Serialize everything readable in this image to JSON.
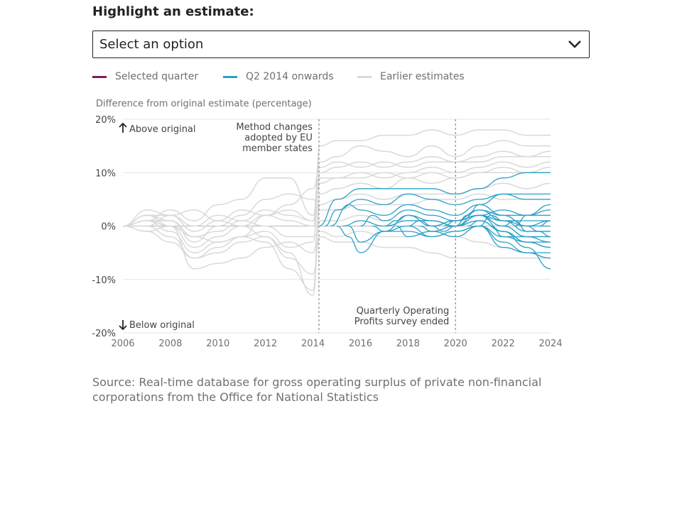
{
  "heading": "Highlight an estimate:",
  "select": {
    "value": "Select an option",
    "icon": "chevron-down-icon"
  },
  "legend": [
    {
      "label": "Selected quarter",
      "color": "#7b1e5e"
    },
    {
      "label": "Q2 2014 onwards",
      "color": "#2aa0c7"
    },
    {
      "label": "Earlier estimates",
      "color": "#d9d9d9"
    }
  ],
  "chart_data": {
    "type": "line",
    "title": "",
    "ylabel": "Difference from original estimate (percentage)",
    "xlim": [
      2006,
      2024
    ],
    "ylim": [
      -20,
      20
    ],
    "x_ticks": [
      "2006",
      "2008",
      "2010",
      "2012",
      "2014",
      "2016",
      "2018",
      "2020",
      "2022",
      "2024"
    ],
    "y_ticks": [
      "20%",
      "10%",
      "0%",
      "-10%",
      "-20%"
    ],
    "y_tick_values": [
      20,
      10,
      0,
      -10,
      -20
    ],
    "grid": true,
    "annotations": {
      "above": "Above original",
      "below": "Below original",
      "method_change": {
        "x": 2014.25,
        "lines": [
          "Method changes",
          "adopted by EU",
          "member states"
        ]
      },
      "survey_ended": {
        "x": 2020,
        "lines": [
          "Quarterly Operating",
          "Profits survey ended"
        ]
      }
    },
    "series_groups": {
      "earlier_estimates": {
        "color": "#d9d9d9",
        "series": [
          {
            "x": [
              2006,
              2007,
              2008,
              2009,
              2010,
              2011,
              2012,
              2013,
              2014,
              2014.3,
              2015,
              2016,
              2017,
              2018,
              2019,
              2020,
              2021,
              2022,
              2023,
              2024
            ],
            "y": [
              0,
              2,
              1,
              -2,
              -1,
              1,
              3,
              2,
              1,
              15,
              16,
              16,
              17,
              17,
              18,
              17,
              18,
              18,
              17,
              17
            ]
          },
          {
            "x": [
              2006,
              2007,
              2008,
              2009,
              2010,
              2011,
              2012,
              2013,
              2014,
              2014.3,
              2015,
              2016,
              2017,
              2018,
              2019,
              2020,
              2021,
              2022,
              2023,
              2024
            ],
            "y": [
              0,
              1,
              3,
              1,
              4,
              5,
              9,
              9,
              2,
              12,
              13,
              15,
              14,
              13,
              15,
              13,
              15,
              16,
              15,
              15
            ]
          },
          {
            "x": [
              2006,
              2007,
              2008,
              2009,
              2010,
              2011,
              2012,
              2013,
              2014,
              2014.3,
              2015,
              2016,
              2017,
              2018,
              2019,
              2020,
              2021,
              2022,
              2023,
              2024
            ],
            "y": [
              0,
              -1,
              -3,
              -6,
              -4,
              -2,
              -1,
              -4,
              -3,
              10,
              11,
              12,
              11,
              12,
              13,
              12,
              13,
              14,
              13,
              14
            ]
          },
          {
            "x": [
              2006,
              2007,
              2008,
              2009,
              2010,
              2011,
              2012,
              2013,
              2014,
              2014.3,
              2015,
              2016,
              2017,
              2018,
              2019,
              2020,
              2021,
              2022,
              2023,
              2024
            ],
            "y": [
              0,
              2,
              0,
              -4,
              -2,
              0,
              2,
              1,
              0,
              8,
              9,
              10,
              9,
              10,
              11,
              10,
              11,
              12,
              11,
              12
            ]
          },
          {
            "x": [
              2006,
              2007,
              2008,
              2009,
              2010,
              2011,
              2012,
              2013,
              2014,
              2014.3,
              2015,
              2016,
              2017,
              2018,
              2019,
              2020,
              2021,
              2022,
              2023,
              2024
            ],
            "y": [
              0,
              1,
              -1,
              -5,
              -3,
              -2,
              -3,
              -8,
              -12,
              6,
              7,
              8,
              7,
              9,
              8,
              9,
              10,
              11,
              10,
              11
            ]
          },
          {
            "x": [
              2006,
              2007,
              2008,
              2009,
              2010,
              2011,
              2012,
              2013,
              2014,
              2014.3,
              2015,
              2016,
              2017,
              2018,
              2019,
              2020,
              2021,
              2022,
              2023,
              2024
            ],
            "y": [
              0,
              0,
              2,
              -1,
              1,
              0,
              -2,
              -5,
              -13,
              4,
              5,
              6,
              5,
              6,
              6,
              6,
              7,
              8,
              7,
              8
            ]
          },
          {
            "x": [
              2006,
              2007,
              2008,
              2009,
              2010,
              2011,
              2012,
              2013,
              2014,
              2014.3,
              2015,
              2016,
              2017,
              2018,
              2019,
              2020,
              2021,
              2022,
              2023,
              2024
            ],
            "y": [
              0,
              1,
              1,
              -3,
              0,
              2,
              5,
              6,
              5,
              3,
              3,
              4,
              4,
              4,
              5,
              5,
              6,
              5,
              5,
              5
            ]
          },
          {
            "x": [
              2006,
              2007,
              2008,
              2009,
              2010,
              2011,
              2012,
              2013,
              2014,
              2014.3,
              2015,
              2016,
              2017,
              2018,
              2019,
              2020,
              2021,
              2022,
              2023,
              2024
            ],
            "y": [
              0,
              -1,
              0,
              -8,
              -7,
              -6,
              -4,
              -3,
              -5,
              1,
              1,
              2,
              1,
              1,
              1,
              0,
              1,
              2,
              2,
              2
            ]
          },
          {
            "x": [
              2006,
              2007,
              2008,
              2009,
              2010,
              2011,
              2012,
              2013,
              2014,
              2014.3,
              2015,
              2016,
              2017,
              2018,
              2019,
              2020,
              2021,
              2022,
              2023,
              2024
            ],
            "y": [
              0,
              2,
              2,
              0,
              2,
              1,
              0,
              -2,
              -2,
              -1,
              -2,
              -1,
              -2,
              -2,
              -1,
              -2,
              -3,
              -4,
              -5,
              -6
            ]
          },
          {
            "x": [
              2006,
              2007,
              2008,
              2009,
              2010,
              2011,
              2012,
              2013,
              2014,
              2014.3,
              2015,
              2016,
              2017,
              2018,
              2019,
              2020,
              2021,
              2022,
              2023,
              2024
            ],
            "y": [
              0,
              0,
              -2,
              -6,
              -5,
              -3,
              -2,
              -6,
              -9,
              -2,
              -3,
              -3,
              -4,
              -4,
              -5,
              -6,
              -6,
              -6,
              -6,
              -6
            ]
          },
          {
            "x": [
              2006,
              2007,
              2008,
              2009,
              2010,
              2011,
              2012,
              2013,
              2014,
              2014.3,
              2015,
              2016,
              2017,
              2018,
              2019,
              2020,
              2021,
              2022,
              2023,
              2024
            ],
            "y": [
              0,
              3,
              2,
              3,
              1,
              3,
              2,
              4,
              7,
              11,
              12,
              11,
              12,
              11,
              12,
              12,
              12,
              13,
              13,
              13
            ]
          },
          {
            "x": [
              2006,
              2007,
              2008,
              2009,
              2010,
              2011,
              2012,
              2013,
              2014,
              2014.3,
              2015,
              2016,
              2017,
              2018,
              2019,
              2020,
              2021,
              2022,
              2023,
              2024
            ],
            "y": [
              0,
              1,
              0,
              -2,
              -3,
              -2,
              2,
              3,
              1,
              9,
              9,
              9,
              10,
              9,
              10,
              9,
              10,
              10,
              10,
              10
            ]
          }
        ]
      },
      "q2_2014_onwards": {
        "color": "#2aa0c7",
        "series": [
          {
            "x": [
              2014.25,
              2015,
              2016,
              2017,
              2018,
              2019,
              2020,
              2021,
              2022,
              2023,
              2024
            ],
            "y": [
              0,
              5,
              7,
              7,
              7,
              7,
              6,
              7,
              9,
              10,
              10
            ]
          },
          {
            "x": [
              2014.5,
              2015,
              2016,
              2017,
              2018,
              2019,
              2020,
              2021,
              2022,
              2023,
              2024
            ],
            "y": [
              0,
              3,
              5,
              4,
              6,
              5,
              4,
              5,
              6,
              6,
              6
            ]
          },
          {
            "x": [
              2014.75,
              2015.5,
              2016,
              2017,
              2018,
              2019,
              2020,
              2021,
              2022,
              2023,
              2024
            ],
            "y": [
              0,
              4,
              3,
              2,
              4,
              3,
              2,
              4,
              6,
              5,
              5
            ]
          },
          {
            "x": [
              2015,
              2015.5,
              2016,
              2017,
              2018,
              2019,
              2020,
              2021,
              2022,
              2023,
              2024
            ],
            "y": [
              0,
              -2,
              -5,
              -1,
              2,
              1,
              0,
              2,
              3,
              2,
              3
            ]
          },
          {
            "x": [
              2015.25,
              2016,
              2017,
              2018,
              2019,
              2020,
              2021,
              2022,
              2023,
              2024
            ],
            "y": [
              0,
              1,
              0,
              1,
              1,
              0,
              2,
              1,
              1,
              1
            ]
          },
          {
            "x": [
              2015.5,
              2016,
              2017,
              2018,
              2019,
              2020,
              2021,
              2022,
              2023,
              2024
            ],
            "y": [
              0,
              -3,
              -1,
              -1,
              -2,
              -1,
              0,
              -2,
              -2,
              -2
            ]
          },
          {
            "x": [
              2016,
              2016.5,
              2017,
              2018,
              2019,
              2020,
              2021,
              2022,
              2023,
              2024
            ],
            "y": [
              0,
              2,
              1,
              3,
              2,
              1,
              3,
              2,
              2,
              2
            ]
          },
          {
            "x": [
              2016.5,
              2017,
              2018,
              2019,
              2020,
              2021,
              2022,
              2023,
              2024
            ],
            "y": [
              0,
              -1,
              0,
              -2,
              -1,
              0,
              -4,
              -5,
              -5
            ]
          },
          {
            "x": [
              2017,
              2017.5,
              2018,
              2019,
              2020,
              2021,
              2022,
              2023,
              2024
            ],
            "y": [
              0,
              1,
              2,
              0,
              1,
              2,
              -1,
              -3,
              -4
            ]
          },
          {
            "x": [
              2017.5,
              2018,
              2019,
              2020,
              2021,
              2022,
              2023,
              2024
            ],
            "y": [
              0,
              -2,
              -1,
              -2,
              0,
              -3,
              -5,
              -6
            ]
          },
          {
            "x": [
              2018,
              2018.5,
              2019,
              2020,
              2021,
              2022,
              2023,
              2024
            ],
            "y": [
              0,
              1,
              0,
              1,
              2,
              0,
              -2,
              -3
            ]
          },
          {
            "x": [
              2018.5,
              2019,
              2020,
              2021,
              2022,
              2023,
              2024
            ],
            "y": [
              0,
              -1,
              0,
              1,
              -1,
              -4,
              -8
            ]
          },
          {
            "x": [
              2019,
              2019.5,
              2020,
              2021,
              2022,
              2023,
              2024
            ],
            "y": [
              0,
              -1,
              0,
              3,
              1,
              -1,
              -1
            ]
          },
          {
            "x": [
              2019.5,
              2020,
              2021,
              2022,
              2023,
              2024
            ],
            "y": [
              0,
              1,
              2,
              0,
              -2,
              -2
            ]
          },
          {
            "x": [
              2020,
              2020.5,
              2021,
              2022,
              2023,
              2024
            ],
            "y": [
              0,
              2,
              4,
              2,
              0,
              1
            ]
          },
          {
            "x": [
              2020.5,
              2021,
              2022,
              2023,
              2024
            ],
            "y": [
              0,
              1,
              -1,
              -3,
              -4
            ]
          },
          {
            "x": [
              2021,
              2021.5,
              2022,
              2023,
              2024
            ],
            "y": [
              0,
              2,
              1,
              0,
              0
            ]
          },
          {
            "x": [
              2021.5,
              2022,
              2023,
              2024
            ],
            "y": [
              0,
              -2,
              -3,
              -3
            ]
          },
          {
            "x": [
              2022,
              2022.5,
              2023,
              2024
            ],
            "y": [
              0,
              1,
              -1,
              -1
            ]
          },
          {
            "x": [
              2022.5,
              2023,
              2024
            ],
            "y": [
              0,
              2,
              4
            ]
          },
          {
            "x": [
              2023,
              2023.5,
              2024
            ],
            "y": [
              0,
              -1,
              -2
            ]
          },
          {
            "x": [
              2023.5,
              2024
            ],
            "y": [
              0,
              1
            ]
          }
        ]
      }
    }
  },
  "source": "Source: Real-time database for gross operating surplus of private non-financial corporations from the Office for National Statistics"
}
